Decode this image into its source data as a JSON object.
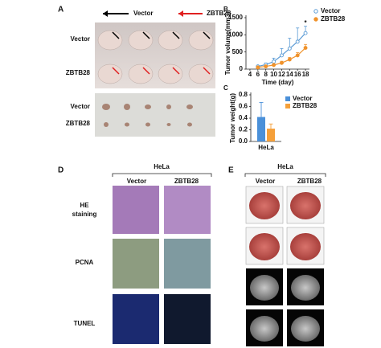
{
  "panels": {
    "a": {
      "label": "A",
      "legend": [
        "Vector",
        "ZBTB28"
      ],
      "row_labels": [
        "Vector",
        "ZBTB28",
        "Vector",
        "ZBTB28"
      ]
    },
    "d": {
      "label": "D",
      "group": "HeLa",
      "columns": [
        "Vector",
        "ZBTB28"
      ],
      "rows": [
        [
          "HE",
          "staining"
        ],
        [
          "PCNA"
        ],
        [
          "TUNEL"
        ]
      ]
    },
    "e": {
      "label": "E",
      "group": "HeLa",
      "columns": [
        "Vector",
        "ZBTB28"
      ]
    }
  },
  "chart_data": [
    {
      "type": "line",
      "label": "B",
      "y_label": "Tumor volume(mm3)",
      "x_label": "Time (day)",
      "x": [
        6,
        8,
        10,
        12,
        14,
        16,
        18
      ],
      "xlim": [
        3,
        19
      ],
      "xticks": [
        4,
        6,
        8,
        10,
        12,
        14,
        16,
        18
      ],
      "ylim": [
        0,
        1500
      ],
      "yticks": [
        0,
        500,
        1000,
        1500
      ],
      "series": [
        {
          "name": "Vector",
          "color": "#5b9bd5",
          "values": [
            80,
            130,
            220,
            400,
            600,
            800,
            1050
          ],
          "errors": [
            20,
            50,
            100,
            200,
            300,
            400,
            200
          ]
        },
        {
          "name": "ZBTB28",
          "color": "#f0922b",
          "values": [
            50,
            80,
            120,
            180,
            280,
            400,
            620
          ],
          "errors": [
            10,
            20,
            30,
            50,
            60,
            80,
            100
          ]
        }
      ],
      "annotation": "*"
    },
    {
      "type": "bar",
      "label": "C",
      "y_label": "Tumor weight(g)",
      "categories": [
        "HeLa"
      ],
      "ylim": [
        0,
        0.8
      ],
      "yticks": [
        {
          "value": 0,
          "label": "0.0"
        },
        0.2,
        0.4,
        0.6,
        0.8
      ],
      "series": [
        {
          "name": "Vector",
          "color": "#4a90d9",
          "values": [
            0.42
          ],
          "errors": [
            0.25
          ]
        },
        {
          "name": "ZBTB28",
          "color": "#f5a03a",
          "values": [
            0.22
          ],
          "errors": [
            0.08
          ]
        }
      ]
    }
  ]
}
